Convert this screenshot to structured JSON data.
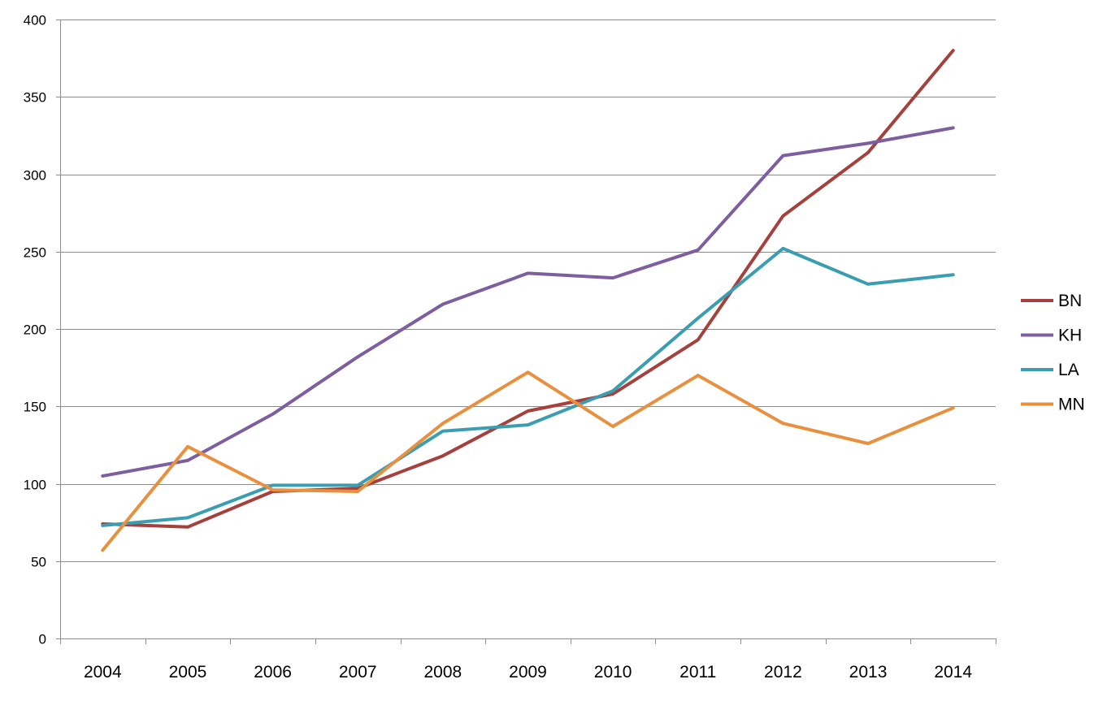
{
  "chart_data": {
    "type": "line",
    "title": "",
    "xlabel": "",
    "ylabel": "",
    "categories": [
      "2004",
      "2005",
      "2006",
      "2007",
      "2008",
      "2009",
      "2010",
      "2011",
      "2012",
      "2013",
      "2014"
    ],
    "ylim": [
      0,
      400
    ],
    "yticks": [
      0,
      50,
      100,
      150,
      200,
      250,
      300,
      350,
      400
    ],
    "grid": true,
    "legend_position": "right",
    "series": [
      {
        "name": "BN",
        "color": "#A5403C",
        "values": [
          74,
          72,
          95,
          97,
          118,
          147,
          158,
          193,
          273,
          314,
          380
        ]
      },
      {
        "name": "KH",
        "color": "#7D5E9E",
        "values": [
          105,
          115,
          145,
          182,
          216,
          236,
          233,
          251,
          312,
          320,
          330
        ]
      },
      {
        "name": "LA",
        "color": "#3B9DB0",
        "values": [
          73,
          78,
          99,
          99,
          134,
          138,
          160,
          207,
          252,
          229,
          235
        ]
      },
      {
        "name": "MN",
        "color": "#E8903E",
        "values": [
          57,
          124,
          96,
          95,
          139,
          172,
          137,
          170,
          139,
          126,
          149
        ]
      }
    ]
  }
}
